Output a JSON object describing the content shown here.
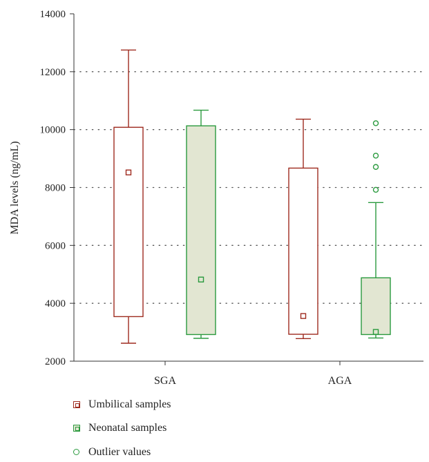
{
  "chart_data": {
    "type": "box",
    "title": "",
    "xlabel": "",
    "ylabel": "MDA levels (ng/mL)",
    "ylim": [
      2000,
      14000
    ],
    "yticks": [
      2000,
      4000,
      6000,
      8000,
      10000,
      12000,
      14000
    ],
    "grid": "horizontal dotted",
    "categories": [
      "SGA",
      "AGA"
    ],
    "series": [
      {
        "name": "Umbilical samples",
        "color": "#9e2a1e",
        "fill": "#ffffff",
        "boxes": [
          {
            "category": "SGA",
            "whisker_low": 2620,
            "q1": 3540,
            "q3": 10080,
            "whisker_high": 12750,
            "marker": 8520,
            "outliers": []
          },
          {
            "category": "AGA",
            "whisker_low": 2780,
            "q1": 2930,
            "q3": 8670,
            "whisker_high": 10360,
            "marker": 3560,
            "outliers": []
          }
        ]
      },
      {
        "name": "Neonatal samples",
        "color": "#2a9a3e",
        "fill": "#e2e6d2",
        "boxes": [
          {
            "category": "SGA",
            "whisker_low": 2790,
            "q1": 2920,
            "q3": 10130,
            "whisker_high": 10670,
            "marker": 4820,
            "outliers": []
          },
          {
            "category": "AGA",
            "whisker_low": 2800,
            "q1": 2920,
            "q3": 4880,
            "whisker_high": 7480,
            "marker": 3010,
            "outliers": [
              7920,
              8710,
              9100,
              10220
            ]
          }
        ]
      }
    ],
    "legend": {
      "placement": "bottom-left",
      "outlier_label": "Outlier values",
      "outlier_color": "#2a9a3e"
    }
  }
}
